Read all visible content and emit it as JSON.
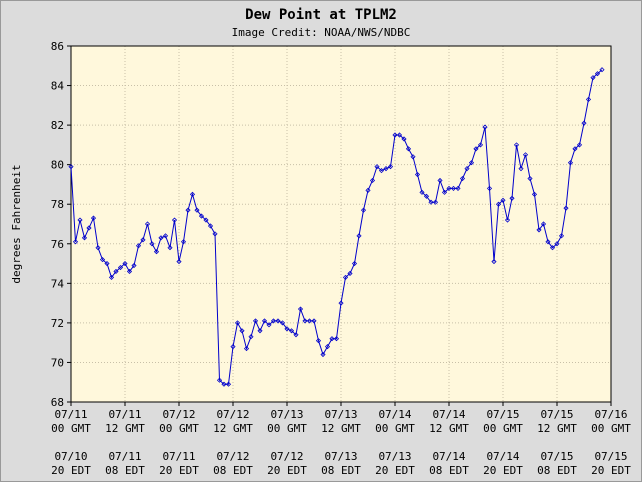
{
  "chart_data": {
    "type": "line",
    "title": "Dew Point at TPLM2",
    "subtitle": "Image Credit: NOAA/NWS/NDBC",
    "y_label": "degrees Fahrenheit",
    "color": "#0000cc",
    "grid": true,
    "ylim": [
      68,
      86
    ],
    "yticks": [
      68,
      70,
      72,
      74,
      76,
      78,
      80,
      82,
      84,
      86
    ],
    "xlim": [
      0,
      120
    ],
    "xticks": [
      {
        "value": 0,
        "label": "07/11",
        "sublabel": "00 GMT"
      },
      {
        "value": 12,
        "label": "07/11",
        "sublabel": "12 GMT"
      },
      {
        "value": 24,
        "label": "07/12",
        "sublabel": "00 GMT"
      },
      {
        "value": 36,
        "label": "07/12",
        "sublabel": "12 GMT"
      },
      {
        "value": 48,
        "label": "07/13",
        "sublabel": "00 GMT"
      },
      {
        "value": 60,
        "label": "07/13",
        "sublabel": "12 GMT"
      },
      {
        "value": 72,
        "label": "07/14",
        "sublabel": "00 GMT"
      },
      {
        "value": 84,
        "label": "07/14",
        "sublabel": "12 GMT"
      },
      {
        "value": 96,
        "label": "07/15",
        "sublabel": "00 GMT"
      },
      {
        "value": 108,
        "label": "07/15",
        "sublabel": "12 GMT"
      },
      {
        "value": 120,
        "label": "07/16",
        "sublabel": "00 GMT"
      }
    ],
    "xticks_local": [
      {
        "value": 0,
        "label": "07/10",
        "sublabel": "20 EDT"
      },
      {
        "value": 12,
        "label": "07/11",
        "sublabel": "08 EDT"
      },
      {
        "value": 24,
        "label": "07/11",
        "sublabel": "20 EDT"
      },
      {
        "value": 36,
        "label": "07/12",
        "sublabel": "08 EDT"
      },
      {
        "value": 48,
        "label": "07/12",
        "sublabel": "20 EDT"
      },
      {
        "value": 60,
        "label": "07/13",
        "sublabel": "08 EDT"
      },
      {
        "value": 72,
        "label": "07/13",
        "sublabel": "20 EDT"
      },
      {
        "value": 84,
        "label": "07/14",
        "sublabel": "08 EDT"
      },
      {
        "value": 96,
        "label": "07/14",
        "sublabel": "20 EDT"
      },
      {
        "value": 108,
        "label": "07/15",
        "sublabel": "08 EDT"
      },
      {
        "value": 120,
        "label": "07/15",
        "sublabel": "20 EDT"
      }
    ],
    "x": [
      0,
      1,
      2,
      3,
      4,
      5,
      6,
      7,
      8,
      9,
      10,
      11,
      12,
      13,
      14,
      15,
      16,
      17,
      18,
      19,
      20,
      21,
      22,
      23,
      24,
      25,
      26,
      27,
      28,
      29,
      30,
      31,
      32,
      33,
      34,
      35,
      36,
      37,
      38,
      39,
      40,
      41,
      42,
      43,
      44,
      45,
      46,
      47,
      48,
      49,
      50,
      51,
      52,
      53,
      54,
      55,
      56,
      57,
      58,
      59,
      60,
      61,
      62,
      63,
      64,
      65,
      66,
      67,
      68,
      69,
      70,
      71,
      72,
      73,
      74,
      75,
      76,
      77,
      78,
      79,
      80,
      81,
      82,
      83,
      84,
      85,
      86,
      87,
      88,
      89,
      90,
      91,
      92,
      93,
      94,
      95,
      96,
      97,
      98,
      99,
      100,
      101,
      102,
      103,
      104,
      105,
      106,
      107,
      108,
      109,
      110,
      111,
      112,
      113,
      114,
      115,
      116,
      117,
      118
    ],
    "values": [
      79.9,
      76.1,
      77.2,
      76.3,
      76.8,
      77.3,
      75.8,
      75.2,
      75.0,
      74.3,
      74.6,
      74.8,
      75.0,
      74.6,
      74.9,
      75.9,
      76.2,
      77.0,
      76.0,
      75.6,
      76.3,
      76.4,
      75.8,
      77.2,
      75.1,
      76.1,
      77.7,
      78.5,
      77.7,
      77.4,
      77.2,
      76.9,
      76.5,
      69.1,
      68.9,
      68.9,
      70.8,
      72.0,
      71.6,
      70.7,
      71.3,
      72.1,
      71.6,
      72.1,
      71.9,
      72.1,
      72.1,
      72.0,
      71.7,
      71.6,
      71.4,
      72.7,
      72.1,
      72.1,
      72.1,
      71.1,
      70.4,
      70.8,
      71.2,
      71.2,
      73.0,
      74.3,
      74.5,
      75.0,
      76.4,
      77.7,
      78.7,
      79.2,
      79.9,
      79.7,
      79.8,
      79.9,
      81.5,
      81.5,
      81.3,
      80.8,
      80.4,
      79.5,
      78.6,
      78.4,
      78.1,
      78.1,
      79.2,
      78.6,
      78.8,
      78.8,
      78.8,
      79.3,
      79.8,
      80.1,
      80.8,
      81.0,
      81.9,
      78.8,
      75.1,
      78.0,
      78.2,
      77.2,
      78.3,
      81.0,
      79.8,
      80.5,
      79.3,
      78.5,
      76.7,
      77.0,
      76.1,
      75.8,
      76.0,
      76.4,
      77.8,
      80.1,
      80.8,
      81.0,
      82.1,
      83.3,
      84.4,
      84.6,
      84.8
    ]
  }
}
